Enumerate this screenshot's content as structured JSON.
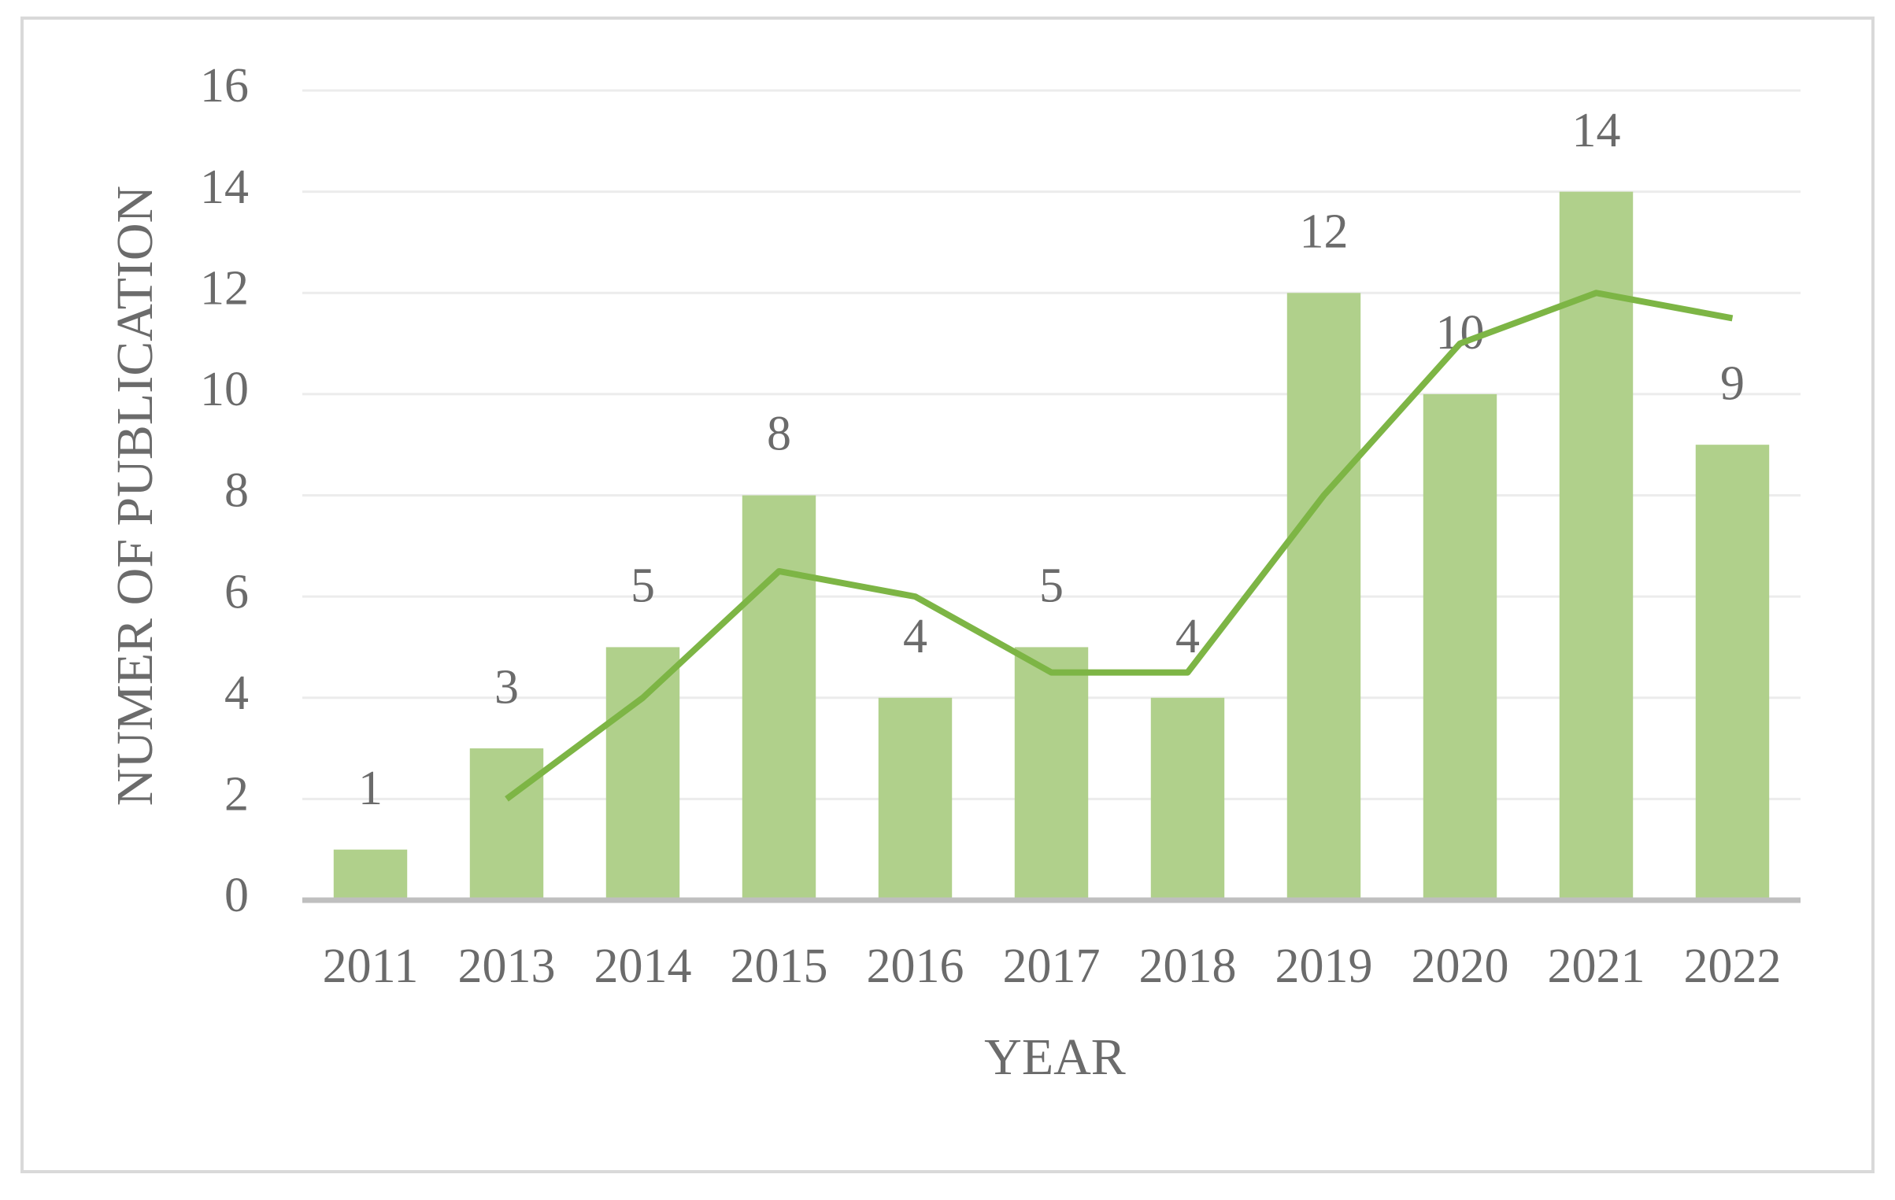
{
  "chart_data": {
    "type": "bar",
    "x_label": "YEAR",
    "y_label": "NUMER OF PUBLICATION",
    "categories": [
      "2011",
      "2013",
      "2014",
      "2015",
      "2016",
      "2017",
      "2018",
      "2019",
      "2020",
      "2021",
      "2022"
    ],
    "series": [
      {
        "type": "bar",
        "color": "#b0d08b",
        "values": [
          1,
          3,
          5,
          8,
          4,
          5,
          4,
          12,
          10,
          14,
          9
        ],
        "data_labels": true
      },
      {
        "type": "line",
        "color": "#7db545",
        "values": [
          null,
          2,
          4,
          6.5,
          6,
          4.5,
          4.5,
          8,
          11,
          12,
          11.5
        ]
      }
    ],
    "ylim": [
      0,
      16
    ],
    "yticks": [
      0,
      2,
      4,
      6,
      8,
      10,
      12,
      14,
      16
    ],
    "grid": true
  }
}
